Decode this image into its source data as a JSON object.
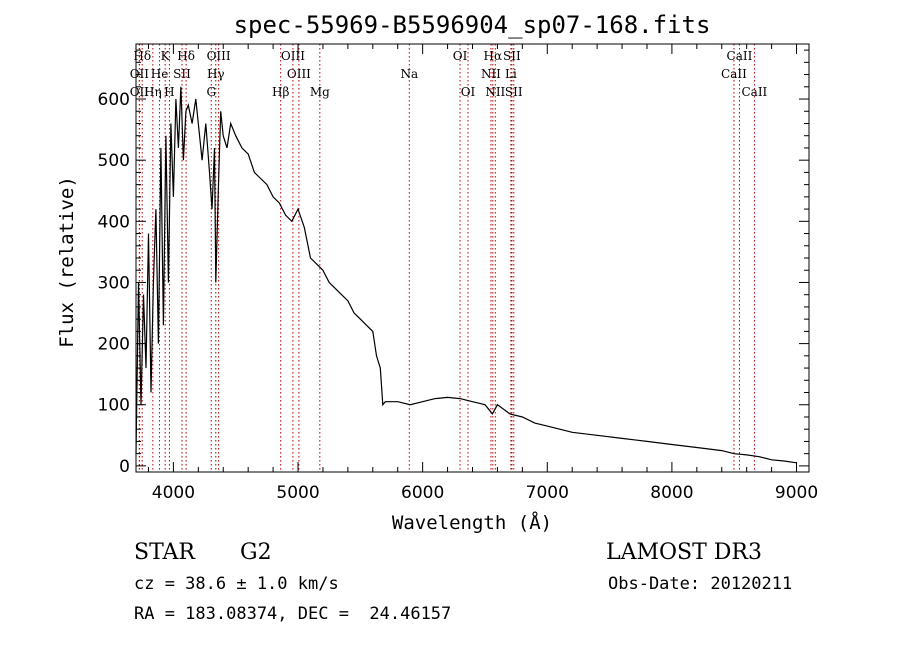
{
  "chart_data": {
    "type": "line",
    "title": "spec-55969-B5596904_sp07-168.fits",
    "xlabel": "Wavelength (Å)",
    "ylabel": "Flux (relative)",
    "xlim": [
      3700,
      9100
    ],
    "ylim": [
      -10,
      690
    ],
    "xticks": [
      4000,
      5000,
      6000,
      7000,
      8000,
      9000
    ],
    "yticks": [
      0,
      100,
      200,
      300,
      400,
      500,
      600
    ],
    "series": [
      {
        "name": "flux",
        "x": [
          3700,
          3720,
          3740,
          3760,
          3780,
          3800,
          3820,
          3840,
          3860,
          3880,
          3900,
          3920,
          3940,
          3960,
          3980,
          4000,
          4020,
          4040,
          4060,
          4080,
          4100,
          4120,
          4150,
          4180,
          4200,
          4230,
          4260,
          4290,
          4310,
          4330,
          4340,
          4360,
          4380,
          4400,
          4430,
          4460,
          4500,
          4550,
          4600,
          4650,
          4700,
          4750,
          4800,
          4850,
          4900,
          4950,
          5000,
          5050,
          5100,
          5150,
          5200,
          5250,
          5300,
          5350,
          5400,
          5450,
          5500,
          5550,
          5600,
          5630,
          5660,
          5680,
          5700,
          5800,
          5900,
          6000,
          6100,
          6200,
          6300,
          6400,
          6500,
          6560,
          6600,
          6700,
          6800,
          6900,
          7000,
          7200,
          7400,
          7600,
          7800,
          8000,
          8200,
          8400,
          8500,
          8600,
          8700,
          8800,
          8900,
          9000
        ],
        "y": [
          20,
          300,
          100,
          280,
          160,
          380,
          120,
          300,
          420,
          200,
          520,
          230,
          540,
          300,
          560,
          440,
          600,
          520,
          620,
          500,
          580,
          590,
          560,
          600,
          560,
          500,
          560,
          480,
          420,
          520,
          300,
          450,
          580,
          540,
          520,
          560,
          540,
          520,
          510,
          480,
          470,
          460,
          440,
          430,
          410,
          400,
          420,
          390,
          340,
          330,
          320,
          300,
          290,
          280,
          270,
          250,
          240,
          230,
          220,
          180,
          160,
          100,
          105,
          105,
          100,
          105,
          110,
          112,
          110,
          105,
          100,
          85,
          100,
          85,
          80,
          70,
          65,
          55,
          50,
          45,
          40,
          35,
          30,
          25,
          20,
          18,
          15,
          10,
          8,
          5
        ]
      }
    ],
    "line_markers": [
      {
        "label": "Hδ",
        "wavelength": 3750,
        "row": 0
      },
      {
        "label": "OII",
        "wavelength": 3727,
        "row": 1
      },
      {
        "label": "OII",
        "wavelength": 3727,
        "row": 2
      },
      {
        "label": "He",
        "wavelength": 3889,
        "row": 1
      },
      {
        "label": "Hη",
        "wavelength": 3835,
        "row": 2
      },
      {
        "label": "K",
        "wavelength": 3934,
        "row": 0
      },
      {
        "label": "H",
        "wavelength": 3968,
        "row": 2
      },
      {
        "label": "SII",
        "wavelength": 4069,
        "row": 1
      },
      {
        "label": "Hδ",
        "wavelength": 4102,
        "row": 0
      },
      {
        "label": "OIII",
        "wavelength": 4363,
        "row": 0
      },
      {
        "label": "Hγ",
        "wavelength": 4340,
        "row": 1
      },
      {
        "label": "G",
        "wavelength": 4304,
        "row": 2
      },
      {
        "label": "Hβ",
        "wavelength": 4861,
        "row": 2
      },
      {
        "label": "OIII",
        "wavelength": 4959,
        "row": 0
      },
      {
        "label": "OIII",
        "wavelength": 5007,
        "row": 1
      },
      {
        "label": "Mg",
        "wavelength": 5175,
        "row": 2
      },
      {
        "label": "Na",
        "wavelength": 5893,
        "row": 1
      },
      {
        "label": "OI",
        "wavelength": 6300,
        "row": 0
      },
      {
        "label": "OI",
        "wavelength": 6364,
        "row": 2
      },
      {
        "label": "Hα",
        "wavelength": 6563,
        "row": 0
      },
      {
        "label": "NII",
        "wavelength": 6548,
        "row": 1
      },
      {
        "label": "NII",
        "wavelength": 6583,
        "row": 2
      },
      {
        "label": "SII",
        "wavelength": 6716,
        "row": 0
      },
      {
        "label": "Li",
        "wavelength": 6708,
        "row": 1
      },
      {
        "label": "SII",
        "wavelength": 6731,
        "row": 2
      },
      {
        "label": "CaII",
        "wavelength": 8542,
        "row": 0
      },
      {
        "label": "CaII",
        "wavelength": 8498,
        "row": 1
      },
      {
        "label": "CaII",
        "wavelength": 8662,
        "row": 2
      }
    ]
  },
  "info": {
    "object_class": "STAR",
    "subclass": "G2",
    "survey": "LAMOST DR3",
    "redshift": "cz = 38.6 ± 1.0 km/s",
    "obs_date": "Obs-Date: 20120211",
    "coords": "RA = 183.08374, DEC =  24.46157"
  },
  "colors": {
    "line": "#000000",
    "marker": "#c00000",
    "axis": "#000000",
    "background": "#ffffff"
  }
}
